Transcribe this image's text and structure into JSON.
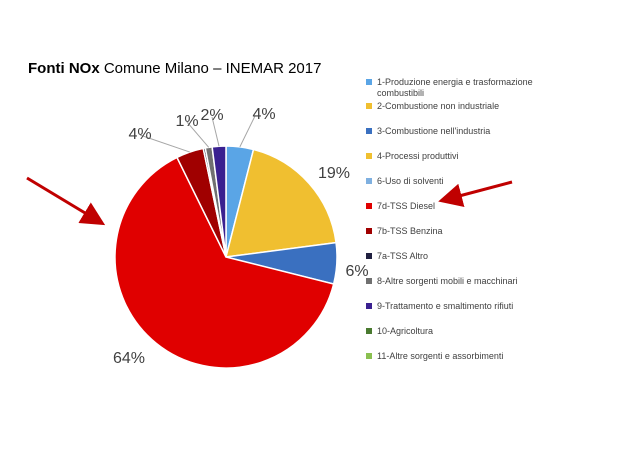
{
  "chart_data": {
    "type": "pie",
    "title": "Fonti NOx Comune Milano – INEMAR 2017",
    "title_bold": "Fonti NOx",
    "title_rest": "Comune Milano – INEMAR 2017",
    "legend_position": "right",
    "slices": [
      {
        "label": "1-Produzione energia e trasformazione combustibili",
        "value": 4,
        "text": "4%",
        "color": "#5aa5e6"
      },
      {
        "label": "2-Combustione non industriale",
        "value": 19,
        "text": "19%",
        "color": "#f0bf30"
      },
      {
        "label": "3-Combustione nell'industria",
        "value": 6,
        "text": "6%",
        "color": "#3a70c0"
      },
      {
        "label": "4-Processi produttivi",
        "value": 0,
        "text": "",
        "color": "#f0c030"
      },
      {
        "label": "6-Uso di solventi",
        "value": 0,
        "text": "",
        "color": "#7fb0e0"
      },
      {
        "label": "7d-TSS Diesel",
        "value": 64,
        "text": "64%",
        "color": "#e00000"
      },
      {
        "label": "7b-TSS Benzina",
        "value": 4,
        "text": "4%",
        "color": "#a00000"
      },
      {
        "label": "7a-TSS Altro",
        "value": 0.3,
        "text": "",
        "color": "#202040"
      },
      {
        "label": "8-Altre sorgenti mobili e macchinari",
        "value": 1,
        "text": "1%",
        "color": "#707070"
      },
      {
        "label": "9-Trattamento e smaltimento rifiuti",
        "value": 2,
        "text": "2%",
        "color": "#3a2090"
      },
      {
        "label": "10-Agricoltura",
        "value": 0,
        "text": "",
        "color": "#4a7a30"
      },
      {
        "label": "11-Altre sorgenti e assorbimenti",
        "value": 0,
        "text": "",
        "color": "#8ac050"
      }
    ]
  }
}
